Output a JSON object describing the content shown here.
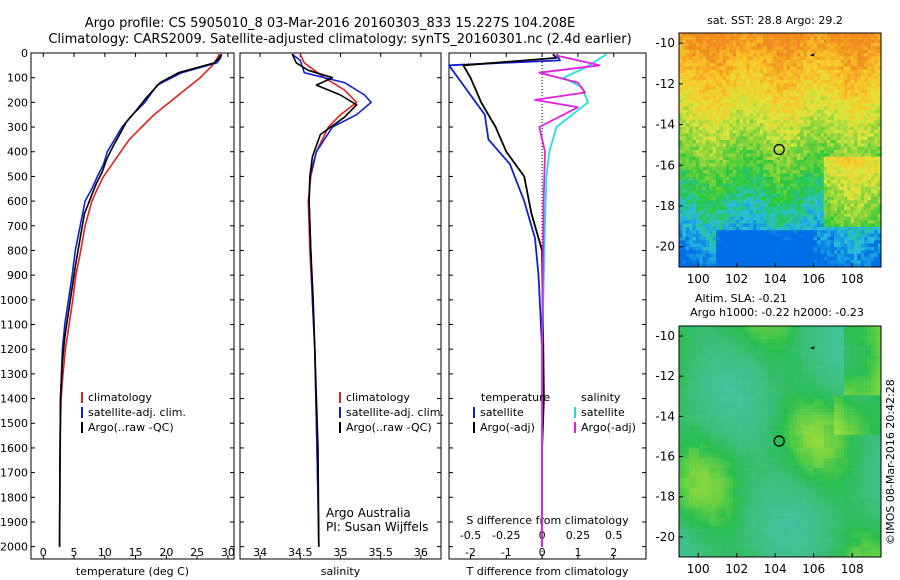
{
  "header": {
    "line1": "Argo profile: CS 5905010_8 03-Mar-2016 20160303_833 15.227S 104.208E",
    "line2": "Climatology: CARS2009. Satellite-adjusted climatology: synTS_20160301.nc (2.4d earlier)"
  },
  "colors": {
    "climatology": "#e02020",
    "satellite": "#1020d0",
    "argo": "#000000",
    "sal_satellite": "#20e0e0",
    "sal_argo": "#e020e0"
  },
  "credits": {
    "line1": "Argo Australia",
    "line2": "PI: Susan Wijffels"
  },
  "watermark": "©IMOS 08-Mar-2016 20:42:28",
  "chart_data": [
    {
      "id": "temperature",
      "type": "line",
      "xlabel": "temperature (deg C)",
      "xlim": [
        -2,
        31
      ],
      "ylim": [
        2050,
        0
      ],
      "y_reversed": true,
      "xticks": [
        0,
        5,
        10,
        15,
        20,
        25,
        30
      ],
      "yticks": [
        0,
        100,
        200,
        300,
        400,
        500,
        600,
        700,
        800,
        900,
        1000,
        1100,
        1200,
        1300,
        1400,
        1500,
        1600,
        1700,
        1800,
        1900,
        2000
      ],
      "legend": [
        "climatology",
        "satellite-adj. clim.",
        "Argo(..raw -QC)"
      ],
      "series": [
        {
          "name": "climatology",
          "color_key": "climatology",
          "x": [
            28.6,
            28.3,
            27.5,
            25.5,
            23,
            20.5,
            18,
            16,
            14,
            12.6,
            11.2,
            9.8,
            8.8,
            7.9,
            6.8,
            6.1,
            5.3,
            4.8,
            4.2,
            3.6,
            3.2,
            2.9,
            2.8,
            2.7,
            2.65
          ],
          "y": [
            5,
            20,
            50,
            100,
            150,
            200,
            250,
            300,
            350,
            400,
            450,
            500,
            550,
            600,
            700,
            800,
            900,
            1000,
            1100,
            1200,
            1300,
            1400,
            1500,
            1700,
            2000
          ]
        },
        {
          "name": "satellite-adj. clim.",
          "color_key": "satellite",
          "x": [
            29.0,
            28.8,
            28.2,
            22.5,
            18.5,
            16.5,
            14.5,
            12.8,
            11.6,
            10.4,
            9.8,
            8.8,
            7.9,
            6.8,
            6.0,
            5.2,
            4.7,
            4.1,
            3.5,
            3.1,
            2.8,
            2.7,
            2.65
          ],
          "y": [
            5,
            20,
            40,
            80,
            130,
            200,
            250,
            300,
            350,
            400,
            450,
            500,
            550,
            600,
            700,
            800,
            900,
            1000,
            1100,
            1200,
            1400,
            1700,
            2000
          ]
        },
        {
          "name": "Argo(..raw -QC)",
          "color_key": "argo",
          "x": [
            28.9,
            28.6,
            27.8,
            22,
            19,
            17.5,
            16.8,
            15.2,
            13.5,
            12.4,
            11.3,
            10.3,
            9.6,
            8.6,
            7.8,
            6.7,
            6.0,
            5.3,
            4.7,
            4.1,
            3.5,
            3.1,
            2.8,
            2.7,
            2.65
          ],
          "y": [
            5,
            20,
            40,
            80,
            120,
            160,
            180,
            230,
            280,
            330,
            380,
            430,
            480,
            530,
            580,
            650,
            750,
            850,
            950,
            1050,
            1150,
            1250,
            1400,
            1700,
            2000
          ]
        }
      ]
    },
    {
      "id": "salinity",
      "type": "line",
      "xlabel": "salinity",
      "xlim": [
        33.75,
        36.25
      ],
      "ylim": [
        2050,
        0
      ],
      "y_reversed": true,
      "xticks": [
        34,
        34.5,
        35,
        35.5,
        36
      ],
      "legend": [
        "climatology",
        "satellite-adj. clim.",
        "Argo(..raw -QC)"
      ],
      "series": [
        {
          "name": "climatology",
          "color_key": "climatology",
          "x": [
            34.5,
            34.55,
            34.8,
            35.05,
            35.2,
            35.0,
            34.85,
            34.7,
            34.63,
            34.6,
            34.62,
            34.65,
            34.68,
            34.7,
            34.72,
            34.73
          ],
          "y": [
            5,
            40,
            100,
            150,
            200,
            250,
            300,
            400,
            500,
            600,
            800,
            1000,
            1200,
            1500,
            1800,
            2000
          ]
        },
        {
          "name": "satellite-adj. clim.",
          "color_key": "satellite",
          "x": [
            34.4,
            34.5,
            34.55,
            35.05,
            35.3,
            35.38,
            35.2,
            34.9,
            34.7,
            34.62,
            34.61,
            34.63,
            34.65,
            34.68,
            34.7,
            34.72,
            34.73
          ],
          "y": [
            5,
            30,
            80,
            120,
            170,
            200,
            250,
            300,
            400,
            500,
            600,
            800,
            1000,
            1200,
            1500,
            1800,
            2000
          ]
        },
        {
          "name": "Argo(..raw -QC)",
          "color_key": "argo",
          "x": [
            34.4,
            34.45,
            34.6,
            34.9,
            34.7,
            35.0,
            35.2,
            35.05,
            34.75,
            34.65,
            34.62,
            34.61,
            34.63,
            34.66,
            34.69,
            34.72,
            34.73
          ],
          "y": [
            5,
            40,
            70,
            100,
            130,
            170,
            210,
            260,
            330,
            420,
            500,
            600,
            800,
            1000,
            1300,
            1600,
            2000
          ]
        }
      ]
    },
    {
      "id": "differences",
      "type": "line",
      "xlabel": "T difference from climatology",
      "xlabel_top": "S difference from climatology",
      "xlim": [
        -2.6,
        2.9
      ],
      "ylim": [
        2050,
        0
      ],
      "y_reversed": true,
      "xticks": [
        -2,
        -1,
        0,
        1,
        2
      ],
      "xticks_top": [
        -0.5,
        -0.25,
        0,
        0.25,
        0.5
      ],
      "xticks_top_labels": [
        "-0.5",
        "-0.25",
        "0",
        "0.25",
        "0.5"
      ],
      "legend": {
        "temperature": {
          "title": "temperature",
          "entries": [
            "satellite",
            "Argo(-adj)"
          ]
        },
        "salinity": {
          "title": "salinity",
          "entries": [
            "satellite",
            "Argo(-adj)"
          ]
        }
      },
      "series": [
        {
          "name": "T satellite",
          "color_key": "satellite",
          "axis": "T",
          "x": [
            0.4,
            0.5,
            -2.6,
            -2.2,
            -1.6,
            -1.5,
            -1.2,
            -0.9,
            -0.5,
            -0.2,
            -0.1,
            0,
            0
          ],
          "y": [
            5,
            30,
            50,
            130,
            250,
            350,
            400,
            450,
            600,
            750,
            900,
            1200,
            2000
          ]
        },
        {
          "name": "T Argo(-adj)",
          "color_key": "argo",
          "axis": "T",
          "x": [
            0.3,
            0.4,
            -2.2,
            -2.0,
            -1.7,
            -1.3,
            -1.0,
            -0.5,
            -0.3,
            0,
            0.05,
            0,
            0
          ],
          "y": [
            5,
            20,
            50,
            100,
            200,
            300,
            400,
            500,
            650,
            800,
            1400,
            1600,
            2000
          ]
        },
        {
          "name": "S satellite",
          "color_key": "sal_satellite",
          "axis": "S",
          "x": [
            0.45,
            0.3,
            0.15,
            0.28,
            0.32,
            0.1,
            0.05,
            0.03,
            0.02,
            0,
            0
          ],
          "y": [
            5,
            60,
            100,
            140,
            200,
            300,
            400,
            500,
            700,
            1200,
            2000
          ]
        },
        {
          "name": "S Argo(-adj)",
          "color_key": "sal_argo",
          "axis": "S",
          "x": [
            0.1,
            0.4,
            -0.02,
            0.25,
            0.3,
            -0.05,
            0.25,
            -0.02,
            0.02,
            0.01,
            0,
            0
          ],
          "y": [
            10,
            50,
            80,
            120,
            160,
            190,
            220,
            300,
            400,
            600,
            1200,
            2000
          ]
        }
      ]
    },
    {
      "id": "sst_map",
      "type": "heatmap",
      "title": "sat. SST: 28.8 Argo: 29.2",
      "xlim": [
        99,
        109.5
      ],
      "ylim": [
        -21,
        -9.5
      ],
      "xticks": [
        100,
        102,
        104,
        106,
        108
      ],
      "yticks": [
        -10,
        -12,
        -14,
        -16,
        -18,
        -20
      ],
      "profile_lon": 104.208,
      "profile_lat": -15.227
    },
    {
      "id": "sla_map",
      "type": "heatmap",
      "title": "Altim. SLA: -0.21",
      "subtitle": "Argo h1000: -0.22 h2000: -0.23",
      "xlim": [
        99,
        109.5
      ],
      "ylim": [
        -21,
        -9.5
      ],
      "xticks": [
        100,
        102,
        104,
        106,
        108
      ],
      "yticks": [
        -10,
        -12,
        -14,
        -16,
        -18,
        -20
      ],
      "profile_lon": 104.208,
      "profile_lat": -15.227
    }
  ]
}
